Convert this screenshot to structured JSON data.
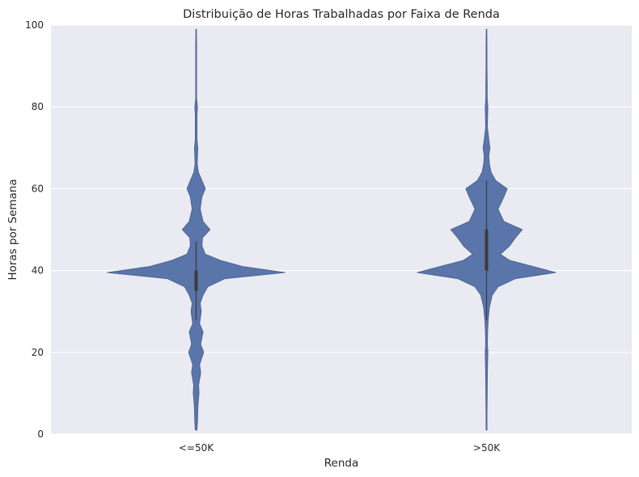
{
  "chart_data": {
    "type": "violin",
    "title": "Distribuição de Horas Trabalhadas por Faixa de Renda",
    "xlabel": "Renda",
    "ylabel": "Horas por Semana",
    "categories": [
      "<=50K",
      ">50K"
    ],
    "ylim": [
      0,
      100
    ],
    "yticks": [
      0,
      20,
      40,
      60,
      80,
      100
    ],
    "grid": true,
    "colors": {
      "violin": "#5975a9",
      "background": "#eaeaf2",
      "inner": "#3a3a3a"
    },
    "quartiles": [
      {
        "category": "<=50K",
        "q1": 35,
        "median": 40,
        "q3": 40,
        "whisker_low": 28,
        "whisker_high": 47
      },
      {
        "category": ">50K",
        "q1": 40,
        "median": 40,
        "q3": 50,
        "whisker_low": 28,
        "whisker_high": 62
      }
    ],
    "density": [
      {
        "category": "<=50K",
        "y": [
          1,
          3,
          7,
          10,
          12,
          15,
          17,
          20,
          22,
          25,
          27,
          30,
          32,
          34,
          36,
          38,
          39.5,
          41,
          42.5,
          44,
          46,
          48,
          50,
          52,
          55,
          58,
          60,
          62,
          64,
          66,
          68,
          70,
          72,
          75,
          78,
          80,
          82,
          85,
          90,
          95,
          99
        ],
        "width": [
          0.008,
          0.012,
          0.016,
          0.025,
          0.022,
          0.04,
          0.03,
          0.065,
          0.04,
          0.06,
          0.03,
          0.045,
          0.035,
          0.06,
          0.1,
          0.25,
          0.77,
          0.4,
          0.21,
          0.08,
          0.05,
          0.055,
          0.12,
          0.06,
          0.035,
          0.05,
          0.08,
          0.05,
          0.02,
          0.01,
          0.012,
          0.015,
          0.008,
          0.008,
          0.008,
          0.012,
          0.004,
          0.004,
          0.004,
          0.004,
          0.003
        ]
      },
      {
        "category": ">50K",
        "y": [
          1,
          5,
          10,
          15,
          20,
          22,
          25,
          28,
          31,
          34,
          36,
          38,
          39.5,
          41,
          42.5,
          44,
          46,
          48,
          50,
          52,
          55,
          58,
          60,
          62,
          64,
          66,
          68,
          70,
          72,
          75,
          78,
          80,
          82,
          85,
          90,
          95,
          99
        ],
        "width": [
          0.004,
          0.004,
          0.006,
          0.008,
          0.012,
          0.008,
          0.01,
          0.015,
          0.025,
          0.05,
          0.1,
          0.25,
          0.6,
          0.4,
          0.2,
          0.12,
          0.2,
          0.25,
          0.31,
          0.15,
          0.1,
          0.15,
          0.18,
          0.08,
          0.04,
          0.025,
          0.02,
          0.03,
          0.02,
          0.008,
          0.01,
          0.012,
          0.006,
          0.006,
          0.004,
          0.004,
          0.003
        ]
      }
    ]
  }
}
